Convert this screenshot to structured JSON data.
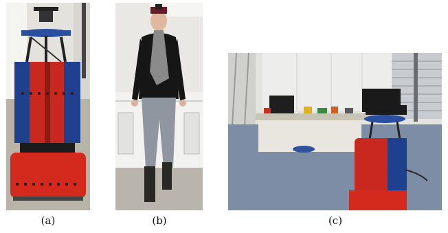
{
  "figure": {
    "panels": [
      {
        "id": "a",
        "caption": "(a)",
        "subject": "robot-photo"
      },
      {
        "id": "b",
        "caption": "(b)",
        "subject": "person-walking-photo"
      },
      {
        "id": "c",
        "caption": "(c)",
        "subject": "lab-room-with-robot-photo"
      }
    ]
  },
  "colors": {
    "robot_red": "#c8281e",
    "robot_blue": "#1f3f8f",
    "wall": "#e6e6e4",
    "floor_blue": "#7e8da6",
    "cabinet_white": "#f2f2f0"
  }
}
